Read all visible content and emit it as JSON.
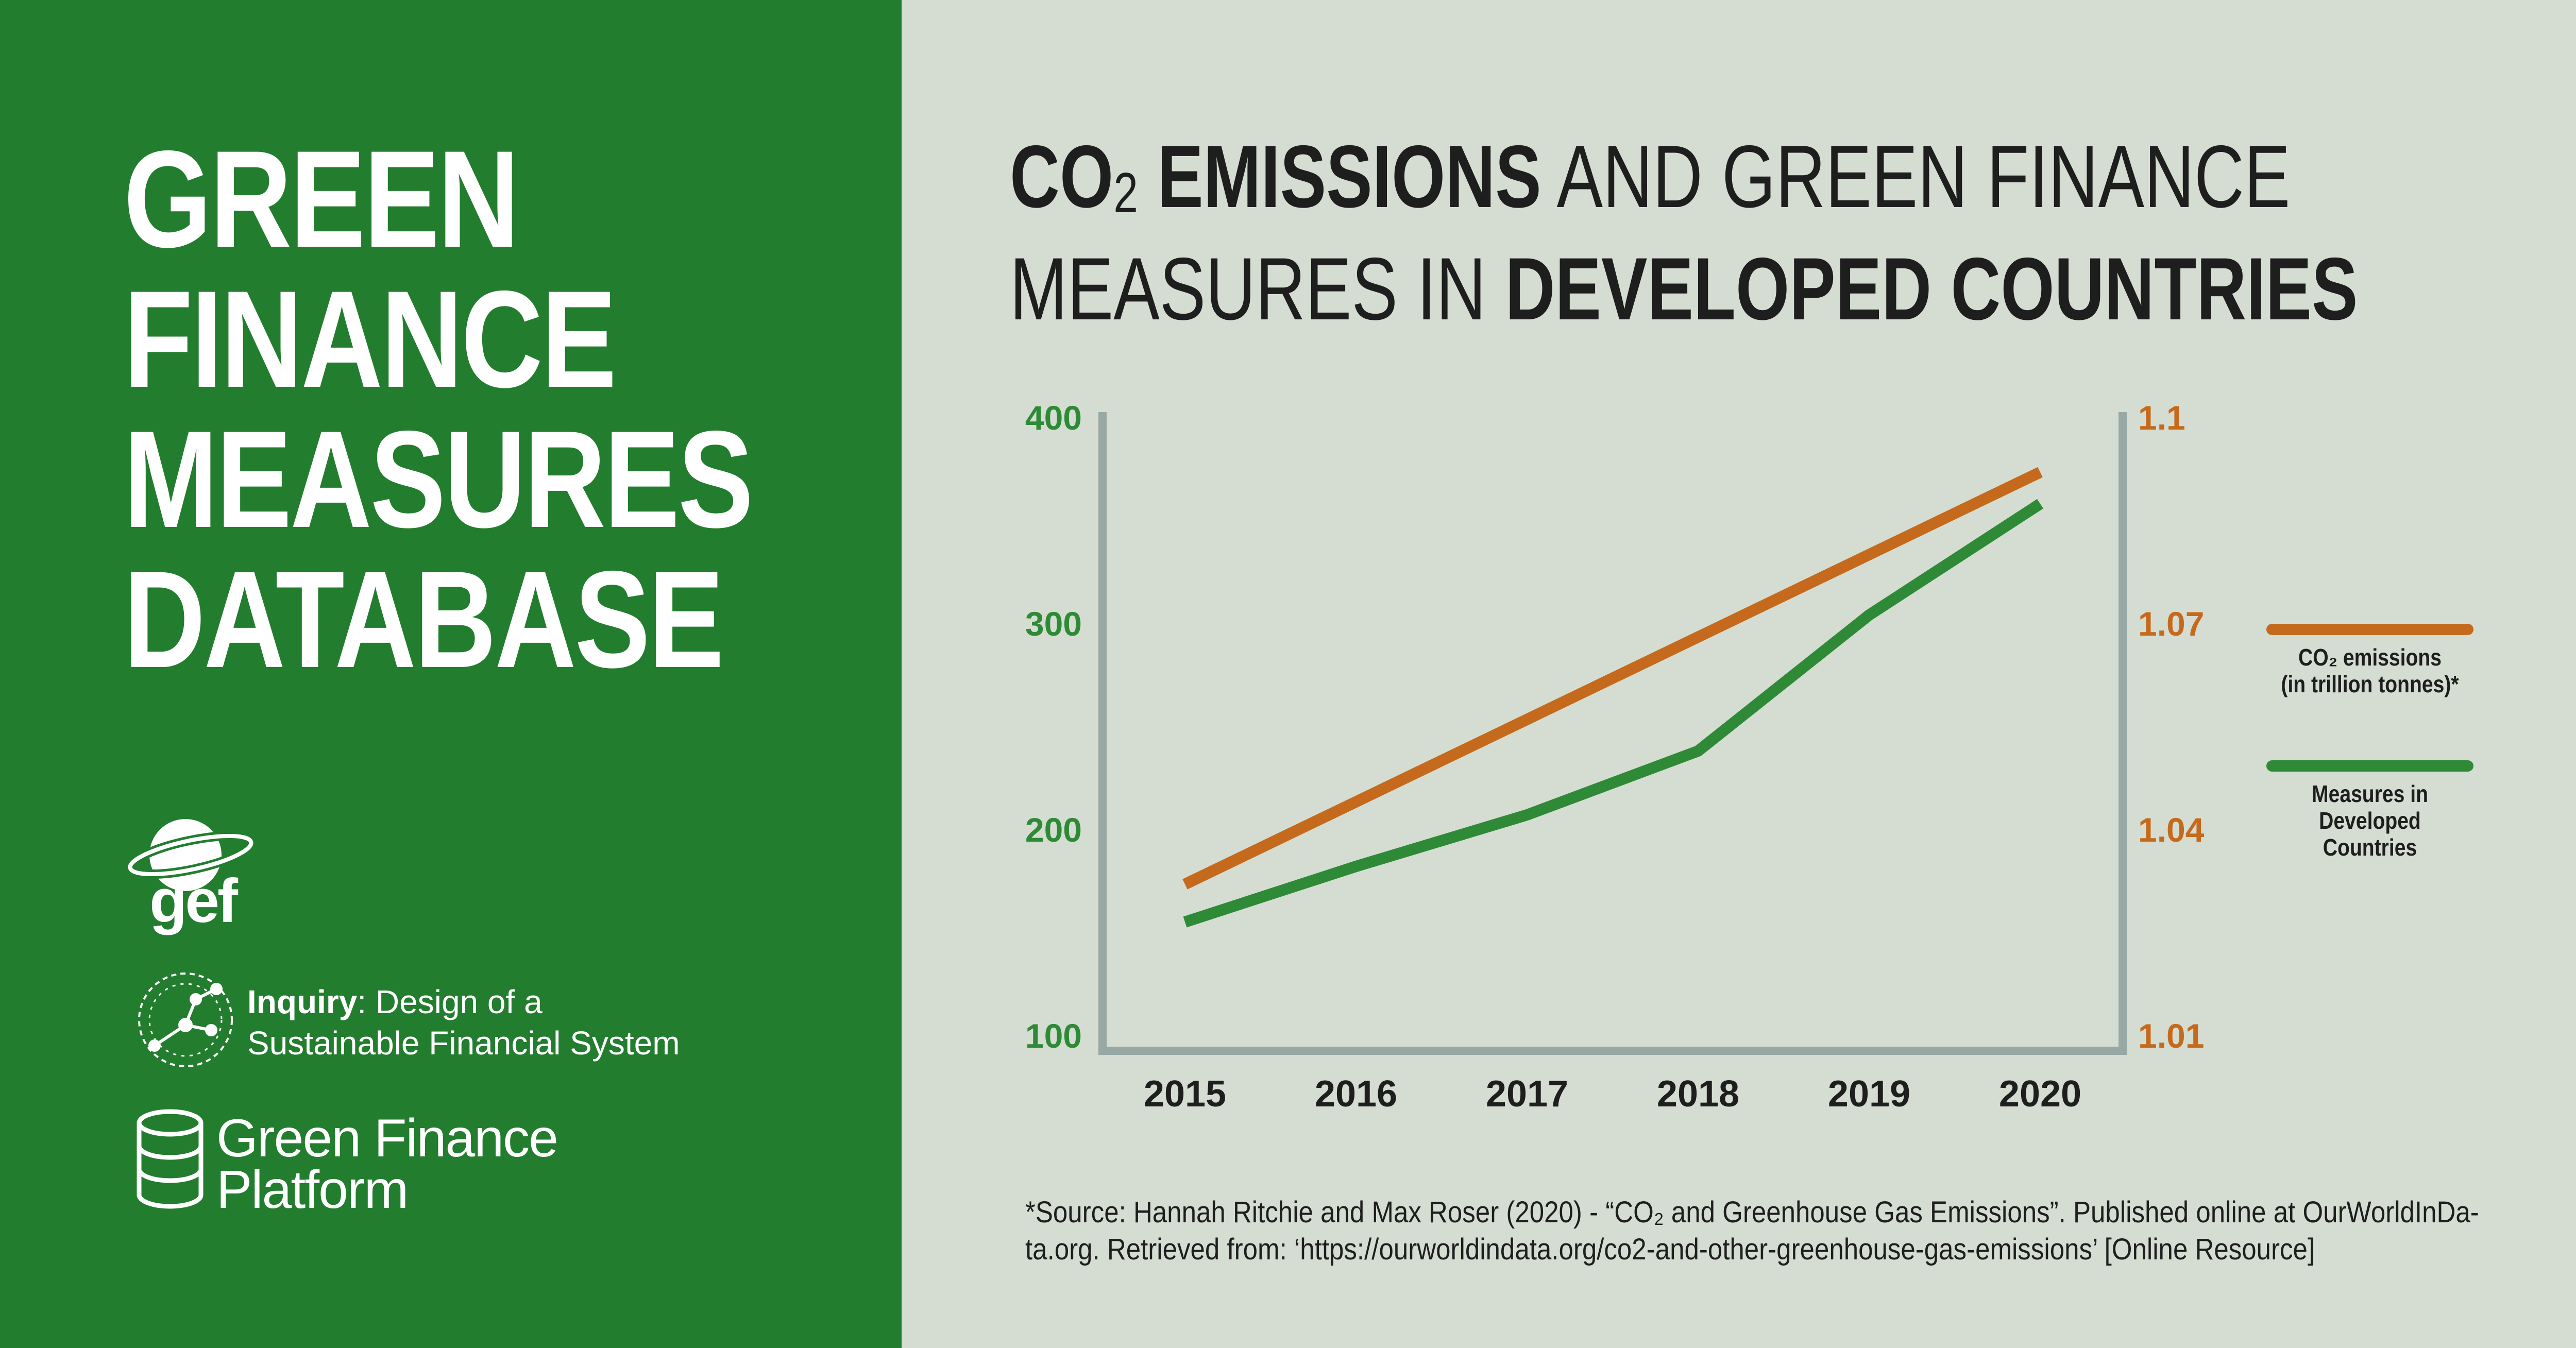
{
  "brand": {
    "database_title": [
      "GREEN",
      "FINANCE",
      "MEASURES",
      "DATABASE"
    ],
    "gef_text": "gef",
    "inquiry_bold": "Inquiry",
    "inquiry_rest": ": Design of a",
    "inquiry_line2": "Sustainable Financial System",
    "gfp_line1": "Green Finance",
    "gfp_line2": "Platform",
    "colors": {
      "panel_green": "#237d2e",
      "background": "#d5ddd2"
    }
  },
  "chart_title": {
    "part1_bold": "CO",
    "sub": "2",
    "part2_bold": " EMISSIONS",
    "part3": " AND GREEN FINANCE",
    "line2_regular": "MEASURES IN ",
    "line2_bold": "DEVELOPED COUNTRIES"
  },
  "chart_data": {
    "type": "line",
    "title": "CO2 EMISSIONS AND GREEN FINANCE MEASURES IN DEVELOPED COUNTRIES",
    "x": [
      "2015",
      "2016",
      "2017",
      "2018",
      "2019",
      "2020"
    ],
    "left_axis": {
      "ticks": [
        "100",
        "200",
        "300",
        "400"
      ],
      "range": [
        100,
        400
      ],
      "color": "#2e8a36"
    },
    "right_axis": {
      "ticks": [
        "1.01",
        "1.04",
        "1.07",
        "1.1"
      ],
      "range": [
        1.01,
        1.1
      ],
      "color": "#c56a1c"
    },
    "series": [
      {
        "name": "CO₂ emissions (in trillion tonnes)*",
        "axis": "right",
        "color": "#c56a1c",
        "values": [
          1.032,
          1.044,
          1.056,
          1.068,
          1.08,
          1.092
        ]
      },
      {
        "name": "Measures in Developed Countries",
        "axis": "left",
        "color": "#2e8a36",
        "values": [
          155,
          182,
          207,
          238,
          304,
          358
        ]
      }
    ],
    "legend": [
      {
        "lines": [
          "CO₂ emissions",
          "(in trillion tonnes)*"
        ],
        "color": "#c56a1c"
      },
      {
        "lines": [
          "Measures in",
          "Developed",
          "Countries"
        ],
        "color": "#2e8a36"
      }
    ],
    "grid": false
  },
  "source": {
    "line1": "*Source: Hannah Ritchie and Max Roser (2020) - “CO₂ and Greenhouse Gas Emissions”. Published online at OurWorldInDa-",
    "line2": "ta.org. Retrieved from: ‘https://ourworldindata.org/co2-and-other-greenhouse-gas-emissions’ [Online Resource]"
  }
}
